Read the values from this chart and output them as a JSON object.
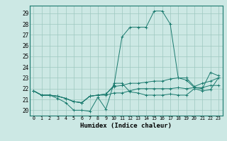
{
  "title": "",
  "xlabel": "Humidex (Indice chaleur)",
  "ylabel": "",
  "bg_color": "#cce8e4",
  "grid_color": "#9ec8c0",
  "line_color": "#1a7a6e",
  "xlim": [
    -0.5,
    23.5
  ],
  "ylim": [
    19.5,
    29.7
  ],
  "xticks": [
    0,
    1,
    2,
    3,
    4,
    5,
    6,
    7,
    8,
    9,
    10,
    11,
    12,
    13,
    14,
    15,
    16,
    17,
    18,
    19,
    20,
    21,
    22,
    23
  ],
  "yticks": [
    20,
    21,
    22,
    23,
    24,
    25,
    26,
    27,
    28,
    29
  ],
  "curves": [
    [
      21.8,
      21.4,
      21.4,
      21.1,
      20.7,
      20.0,
      20.0,
      19.9,
      21.2,
      20.1,
      22.5,
      22.5,
      21.7,
      21.6,
      21.4,
      21.4,
      21.4,
      21.5,
      21.4,
      21.4,
      22.0,
      21.8,
      21.9,
      23.0
    ],
    [
      21.8,
      21.4,
      21.4,
      21.3,
      21.1,
      20.8,
      20.7,
      21.3,
      21.4,
      21.4,
      21.6,
      21.6,
      21.8,
      22.0,
      22.0,
      22.0,
      22.0,
      22.0,
      22.1,
      22.0,
      22.1,
      22.1,
      22.3,
      22.3
    ],
    [
      21.8,
      21.4,
      21.4,
      21.3,
      21.1,
      20.8,
      20.7,
      21.3,
      21.4,
      21.5,
      22.3,
      26.8,
      27.7,
      27.7,
      27.7,
      29.2,
      29.2,
      28.0,
      23.0,
      22.8,
      22.1,
      22.0,
      23.5,
      23.2
    ],
    [
      21.8,
      21.4,
      21.4,
      21.3,
      21.1,
      20.8,
      20.7,
      21.3,
      21.4,
      21.5,
      22.2,
      22.3,
      22.5,
      22.5,
      22.6,
      22.7,
      22.7,
      22.9,
      23.0,
      23.0,
      22.2,
      22.5,
      22.7,
      23.0
    ]
  ]
}
